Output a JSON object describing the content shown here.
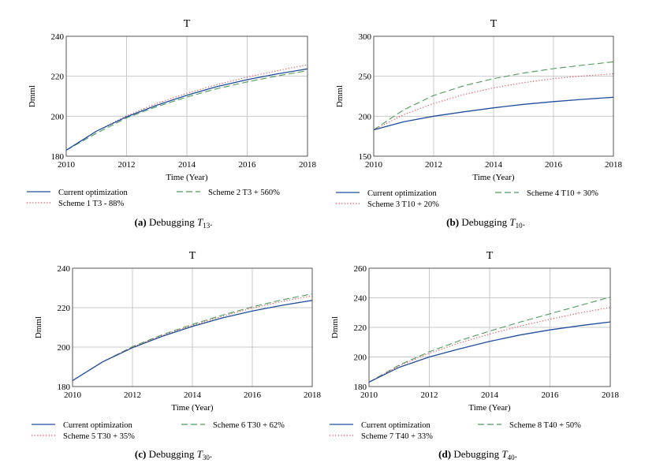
{
  "chart_data": [
    {
      "type": "line",
      "title": "T",
      "xlabel": "Time (Year)",
      "ylabel": "Dmml",
      "xlim": [
        2010,
        2018
      ],
      "ylim": [
        180,
        240
      ],
      "xticks": [
        2010,
        2012,
        2014,
        2016,
        2018
      ],
      "yticks": [
        180,
        200,
        220,
        240
      ],
      "grid": true,
      "caption": {
        "label": "(a)",
        "text": "Debugging",
        "var": "T",
        "sub": "13",
        "end": "."
      },
      "x": [
        2010,
        2011,
        2012,
        2013,
        2014,
        2015,
        2016,
        2017,
        2018
      ],
      "series": [
        {
          "name": "Current optimization",
          "color": "#1f4e9e",
          "style": "solid",
          "values": [
            183,
            192.5,
            199.7,
            205.5,
            210.5,
            214.8,
            218.3,
            221.2,
            223.7
          ]
        },
        {
          "name": "Scheme 1 T3 - 88%",
          "color": "#e0434a",
          "style": "dotted",
          "values": [
            183,
            192.5,
            200.2,
            206.5,
            211.5,
            215.8,
            219.6,
            222.8,
            225.8
          ]
        },
        {
          "name": "Scheme 2 T3 + 560%",
          "color": "#4f9a5b",
          "style": "dashed",
          "values": [
            183,
            191.5,
            199.2,
            204.8,
            209.6,
            213.8,
            217.2,
            220.2,
            222.8
          ]
        }
      ],
      "legend_order": [
        0,
        2,
        1
      ]
    },
    {
      "type": "line",
      "title": "T",
      "xlabel": "Time (Year)",
      "ylabel": "Dmml",
      "xlim": [
        2010,
        2018
      ],
      "ylim": [
        150,
        300
      ],
      "xticks": [
        2010,
        2012,
        2014,
        2016,
        2018
      ],
      "yticks": [
        150,
        200,
        250,
        300
      ],
      "grid": true,
      "caption": {
        "label": "(b)",
        "text": "Debugging",
        "var": "T",
        "sub": "10",
        "end": "."
      },
      "x": [
        2010,
        2011,
        2012,
        2013,
        2014,
        2015,
        2016,
        2017,
        2018
      ],
      "series": [
        {
          "name": "Current optimization",
          "color": "#1f4e9e",
          "style": "solid",
          "values": [
            183,
            193,
            200,
            205.5,
            210.5,
            214.8,
            218.3,
            221.2,
            223.7
          ]
        },
        {
          "name": "Scheme 3 T10 + 20%",
          "color": "#e0434a",
          "style": "dotted",
          "values": [
            183,
            202,
            216,
            227,
            235.5,
            242,
            247,
            250.5,
            253
          ]
        },
        {
          "name": "Scheme 4 T10 + 30%",
          "color": "#4f9a5b",
          "style": "dashed",
          "values": [
            183,
            208,
            226,
            238,
            247,
            254,
            259.5,
            264,
            268
          ]
        }
      ],
      "legend_order": [
        0,
        2,
        1
      ]
    },
    {
      "type": "line",
      "title": "T",
      "xlabel": "Time (Year)",
      "ylabel": "Dmml",
      "xlim": [
        2010,
        2018
      ],
      "ylim": [
        180,
        240
      ],
      "xticks": [
        2010,
        2012,
        2014,
        2016,
        2018
      ],
      "yticks": [
        180,
        200,
        220,
        240
      ],
      "grid": true,
      "caption": {
        "label": "(c)",
        "text": "Debugging",
        "var": "T",
        "sub": "30",
        "end": "."
      },
      "x": [
        2010,
        2011,
        2012,
        2013,
        2014,
        2015,
        2016,
        2017,
        2018
      ],
      "series": [
        {
          "name": "Current optimization",
          "color": "#1f4e9e",
          "style": "solid",
          "values": [
            183,
            192.5,
            199.7,
            205.5,
            210.5,
            214.8,
            218.3,
            221.2,
            223.7
          ]
        },
        {
          "name": "Scheme 5 T30 + 35%",
          "color": "#e0434a",
          "style": "dotted",
          "values": [
            183,
            192.5,
            200,
            206,
            211,
            215.6,
            219.8,
            223.2,
            226
          ]
        },
        {
          "name": "Scheme 6 T30 + 62%",
          "color": "#4f9a5b",
          "style": "dashed",
          "values": [
            183,
            192.5,
            200.2,
            206.3,
            211.5,
            216.2,
            220.4,
            224,
            227
          ]
        }
      ],
      "legend_order": [
        0,
        2,
        1
      ]
    },
    {
      "type": "line",
      "title": "T",
      "xlabel": "Time (Year)",
      "ylabel": "Dmml",
      "xlim": [
        2010,
        2018
      ],
      "ylim": [
        180,
        260
      ],
      "xticks": [
        2010,
        2012,
        2014,
        2016,
        2018
      ],
      "yticks": [
        180,
        200,
        220,
        240,
        260
      ],
      "grid": true,
      "caption": {
        "label": "(d)",
        "text": "Debugging",
        "var": "T",
        "sub": "40",
        "end": "."
      },
      "x": [
        2010,
        2011,
        2012,
        2013,
        2014,
        2015,
        2016,
        2017,
        2018
      ],
      "series": [
        {
          "name": "Current optimization",
          "color": "#1f4e9e",
          "style": "solid",
          "values": [
            183,
            193,
            200,
            205.5,
            210.5,
            214.8,
            218.3,
            221.2,
            223.7
          ]
        },
        {
          "name": "Scheme 7 T40 + 33%",
          "color": "#e0434a",
          "style": "dotted",
          "values": [
            183,
            194,
            202.5,
            209.5,
            215.5,
            220.8,
            225.5,
            229.8,
            233.5
          ]
        },
        {
          "name": "Scheme 8 T40 + 50%",
          "color": "#4f9a5b",
          "style": "dashed",
          "values": [
            183,
            194.5,
            203.5,
            211,
            217.5,
            223.5,
            229.2,
            234.8,
            240.5
          ]
        }
      ],
      "legend_order": [
        0,
        2,
        1
      ]
    }
  ]
}
